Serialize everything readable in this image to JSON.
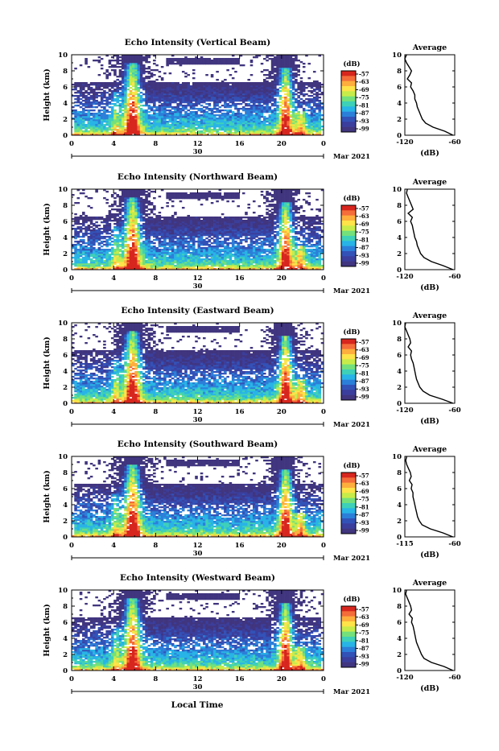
{
  "figure": {
    "bottom_xlabel": "Local Time",
    "date_label": "Mar 2021",
    "day_label": "30",
    "colorbar": {
      "unit": "(dB)",
      "ticks": [
        "-57",
        "-63",
        "-69",
        "-75",
        "-81",
        "-87",
        "-93",
        "-99"
      ],
      "colors": [
        "#d7261e",
        "#f46d3a",
        "#fdae3d",
        "#fee349",
        "#c7ec4a",
        "#73e07c",
        "#3fd0b8",
        "#28b4e6",
        "#2c7fd8",
        "#3352b8",
        "#3b3e9c",
        "#40357f"
      ]
    }
  },
  "chart_data": [
    {
      "type": "heatmap",
      "title": "Echo Intensity (Vertical Beam)",
      "xlabel": "",
      "ylabel": "Height (km)",
      "xlim": [
        0,
        24
      ],
      "ylim": [
        0,
        10
      ],
      "xticks": [
        "0",
        "4",
        "8",
        "12",
        "16",
        "20",
        "0"
      ],
      "yticks": [
        "0",
        "2",
        "4",
        "6",
        "8",
        "10"
      ],
      "z_unit": "dB",
      "z_range": [
        -99,
        -57
      ],
      "average_profile": {
        "title": "Average",
        "xlabel": "(dB)",
        "xlim": [
          -120,
          -60
        ],
        "xticks": [
          "-120",
          "-60"
        ],
        "height_km": [
          0,
          0.5,
          1,
          1.5,
          2,
          2.5,
          3,
          3.5,
          4,
          4.5,
          5,
          5.5,
          6,
          6.5,
          7,
          7.5,
          8,
          8.5,
          9,
          9.5,
          10
        ],
        "values_db": [
          -62,
          -72,
          -86,
          -95,
          -99,
          -101,
          -103,
          -105,
          -106,
          -108,
          -108,
          -110,
          -113,
          -112,
          -117,
          -114,
          -112,
          -115,
          -118,
          -120,
          -118
        ]
      }
    },
    {
      "type": "heatmap",
      "title": "Echo Intensity (Northward Beam)",
      "xlabel": "",
      "ylabel": "Height (km)",
      "xlim": [
        0,
        24
      ],
      "ylim": [
        0,
        10
      ],
      "xticks": [
        "0",
        "4",
        "8",
        "12",
        "16",
        "20",
        "0"
      ],
      "yticks": [
        "0",
        "2",
        "4",
        "6",
        "8",
        "10"
      ],
      "z_unit": "dB",
      "z_range": [
        -99,
        -57
      ],
      "average_profile": {
        "title": "Average",
        "xlabel": "(dB)",
        "xlim": [
          -120,
          -60
        ],
        "xticks": [
          "-120",
          "-60"
        ],
        "height_km": [
          0,
          0.5,
          1,
          1.5,
          2,
          2.5,
          3,
          3.5,
          4,
          4.5,
          5,
          5.5,
          6,
          6.5,
          7,
          7.5,
          8,
          8.5,
          9,
          9.5,
          10
        ],
        "values_db": [
          -62,
          -74,
          -88,
          -97,
          -101,
          -103,
          -105,
          -106,
          -108,
          -109,
          -110,
          -111,
          -113,
          -111,
          -116,
          -110,
          -112,
          -114,
          -116,
          -118,
          -117
        ]
      }
    },
    {
      "type": "heatmap",
      "title": "Echo Intensity (Eastward Beam)",
      "xlabel": "",
      "ylabel": "Height (km)",
      "xlim": [
        0,
        24
      ],
      "ylim": [
        0,
        10
      ],
      "xticks": [
        "0",
        "4",
        "8",
        "12",
        "16",
        "20",
        "0"
      ],
      "yticks": [
        "0",
        "2",
        "4",
        "6",
        "8",
        "10"
      ],
      "z_unit": "dB",
      "z_range": [
        -99,
        -57
      ],
      "average_profile": {
        "title": "Average",
        "xlabel": "(dB)",
        "xlim": [
          -120,
          -60
        ],
        "xticks": [
          "-120",
          "-60"
        ],
        "height_km": [
          0,
          0.5,
          1,
          1.5,
          2,
          2.5,
          3,
          3.5,
          4,
          4.5,
          5,
          5.5,
          6,
          6.5,
          7,
          7.5,
          8,
          8.5,
          9,
          9.5,
          10
        ],
        "values_db": [
          -62,
          -75,
          -90,
          -98,
          -102,
          -104,
          -106,
          -107,
          -108,
          -109,
          -110,
          -112,
          -113,
          -112,
          -116,
          -113,
          -114,
          -116,
          -118,
          -120,
          -119
        ]
      }
    },
    {
      "type": "heatmap",
      "title": "Echo Intensity (Southward Beam)",
      "xlabel": "",
      "ylabel": "Height (km)",
      "xlim": [
        0,
        24
      ],
      "ylim": [
        0,
        10
      ],
      "xticks": [
        "0",
        "4",
        "8",
        "12",
        "16",
        "20",
        "0"
      ],
      "yticks": [
        "0",
        "2",
        "4",
        "6",
        "8",
        "10"
      ],
      "z_unit": "dB",
      "z_range": [
        -99,
        -57
      ],
      "average_profile": {
        "title": "Average",
        "xlabel": "(dB)",
        "xlim": [
          -115,
          -60
        ],
        "xticks": [
          "-115",
          "-60"
        ],
        "height_km": [
          0,
          0.5,
          1,
          1.5,
          2,
          2.5,
          3,
          3.5,
          4,
          4.5,
          5,
          5.5,
          6,
          6.5,
          7,
          7.5,
          8,
          8.5,
          9,
          9.5,
          10
        ],
        "values_db": [
          -62,
          -73,
          -87,
          -96,
          -99,
          -101,
          -102,
          -103,
          -104,
          -105,
          -106,
          -106,
          -108,
          -107,
          -110,
          -108,
          -109,
          -111,
          -113,
          -114,
          -113
        ]
      }
    },
    {
      "type": "heatmap",
      "title": "Echo Intensity (Westward Beam)",
      "xlabel": "",
      "ylabel": "Height (km)",
      "xlim": [
        0,
        24
      ],
      "ylim": [
        0,
        10
      ],
      "xticks": [
        "0",
        "4",
        "8",
        "12",
        "16",
        "20",
        "0"
      ],
      "yticks": [
        "0",
        "2",
        "4",
        "6",
        "8",
        "10"
      ],
      "z_unit": "dB",
      "z_range": [
        -99,
        -57
      ],
      "average_profile": {
        "title": "Average",
        "xlabel": "(dB)",
        "xlim": [
          -120,
          -60
        ],
        "xticks": [
          "-120",
          "-60"
        ],
        "height_km": [
          0,
          0.5,
          1,
          1.5,
          2,
          2.5,
          3,
          3.5,
          4,
          4.5,
          5,
          5.5,
          6,
          6.5,
          7,
          7.5,
          8,
          8.5,
          9,
          9.5,
          10
        ],
        "values_db": [
          -62,
          -73,
          -88,
          -97,
          -100,
          -102,
          -104,
          -106,
          -107,
          -108,
          -109,
          -110,
          -112,
          -111,
          -115,
          -112,
          -113,
          -115,
          -117,
          -119,
          -118
        ]
      }
    }
  ]
}
